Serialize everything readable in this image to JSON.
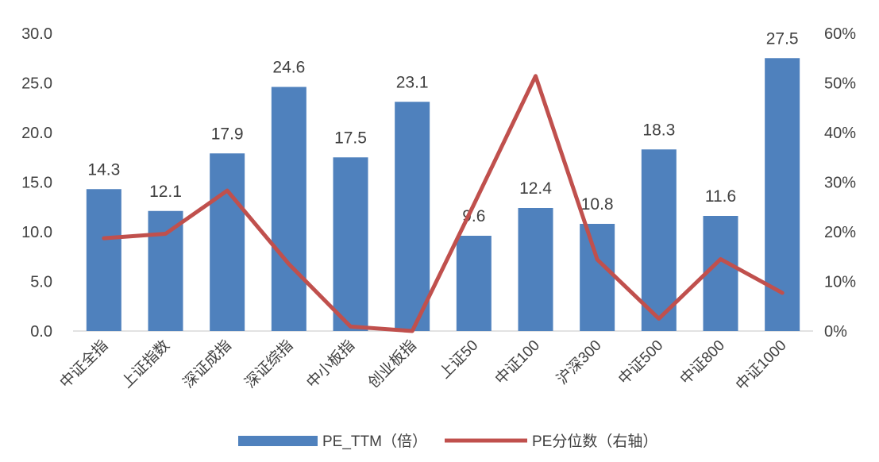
{
  "chart_data": {
    "type": "bar",
    "categories": [
      "中证全指",
      "上证指数",
      "深证成指",
      "深证综指",
      "中小板指",
      "创业板指",
      "上证50",
      "中证100",
      "沪深300",
      "中证500",
      "中证800",
      "中证1000"
    ],
    "series": [
      {
        "name": "PE_TTM（倍）",
        "type": "bar",
        "axis": "left",
        "values": [
          14.3,
          12.1,
          17.9,
          24.6,
          17.5,
          23.1,
          9.6,
          12.4,
          10.8,
          18.3,
          11.6,
          27.5
        ],
        "labels": [
          "14.3",
          "12.1",
          "17.9",
          "24.6",
          "17.5",
          "23.1",
          "9.6",
          "12.4",
          "10.8",
          "18.3",
          "11.6",
          "27.5"
        ],
        "color": "#4f81bd"
      },
      {
        "name": "PE分位数（右轴）",
        "type": "line",
        "axis": "right",
        "values": [
          0.187,
          0.196,
          0.283,
          0.135,
          0.009,
          0.0,
          0.255,
          0.514,
          0.144,
          0.025,
          0.145,
          0.077
        ],
        "color": "#c0504d"
      }
    ],
    "y_left": {
      "min": 0,
      "max": 30,
      "ticks": [
        "0.0",
        "5.0",
        "10.0",
        "15.0",
        "20.0",
        "25.0",
        "30.0"
      ]
    },
    "y_right": {
      "min": 0,
      "max": 0.6,
      "ticks": [
        "0%",
        "10%",
        "20%",
        "30%",
        "40%",
        "50%",
        "60%"
      ]
    },
    "grid": false,
    "legend": "bottom"
  }
}
